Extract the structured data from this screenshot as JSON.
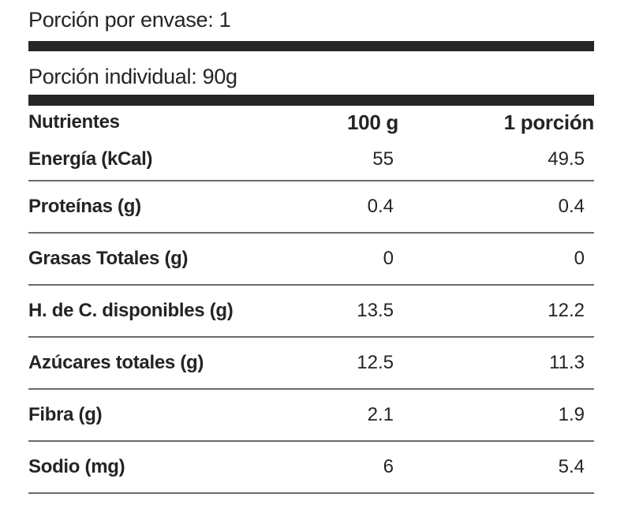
{
  "header": {
    "portion_per_package": "Porción por envase: 1",
    "individual_portion": "Porción individual: 90g"
  },
  "table": {
    "columns": [
      "Nutrientes",
      "100 g",
      "1 porción"
    ],
    "rows": [
      {
        "label": "Energía (kCal)",
        "per_100g": "55",
        "per_portion": "49.5"
      },
      {
        "label": "Proteínas (g)",
        "per_100g": "0.4",
        "per_portion": "0.4"
      },
      {
        "label": "Grasas Totales (g)",
        "per_100g": "0",
        "per_portion": "0"
      },
      {
        "label": "H. de C. disponibles (g)",
        "per_100g": "13.5",
        "per_portion": "12.2"
      },
      {
        "label": "Azúcares totales (g)",
        "per_100g": "12.5",
        "per_portion": "11.3"
      },
      {
        "label": "Fibra (g)",
        "per_100g": "2.1",
        "per_portion": "1.9"
      },
      {
        "label": "Sodio (mg)",
        "per_100g": "6",
        "per_portion": "5.4"
      }
    ]
  },
  "colors": {
    "text": "#242424",
    "bar": "#262626",
    "separator": "#6b6b6b",
    "background": "#ffffff"
  }
}
